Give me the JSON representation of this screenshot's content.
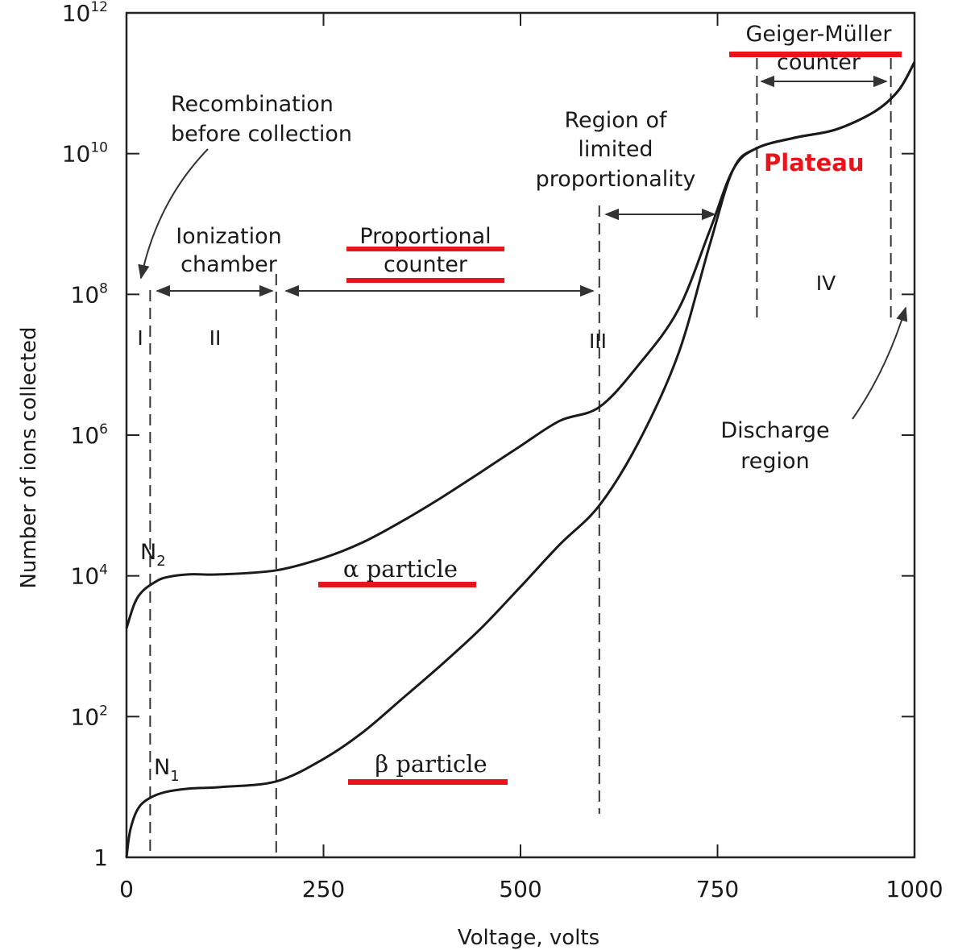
{
  "chart_data": {
    "type": "line",
    "title": "",
    "xlabel": "Voltage, volts",
    "ylabel": "Number of ions collected",
    "xlim": [
      0,
      1000
    ],
    "ylim_log10": [
      0,
      12
    ],
    "y_scale": "log",
    "grid": false,
    "x_ticks": [
      "0",
      "250",
      "500",
      "750",
      "1000"
    ],
    "y_ticks": [
      {
        "base": "1",
        "exp": ""
      },
      {
        "base": "10",
        "exp": "2"
      },
      {
        "base": "10",
        "exp": "4"
      },
      {
        "base": "10",
        "exp": "6"
      },
      {
        "base": "10",
        "exp": "8"
      },
      {
        "base": "10",
        "exp": "10"
      },
      {
        "base": "10",
        "exp": "12"
      }
    ],
    "series": [
      {
        "name": "α particle",
        "x": [
          0,
          10,
          20,
          35,
          50,
          80,
          120,
          190,
          250,
          300,
          350,
          400,
          450,
          500,
          550,
          600,
          650,
          700,
          740,
          770,
          800,
          850,
          900,
          950,
          980,
          1000
        ],
        "y": [
          1800.0,
          4000.0,
          6000.0,
          8000.0,
          9500.0,
          10500.0,
          10500.0,
          12000.0,
          18000.0,
          30000.0,
          60000.0,
          130000.0,
          300000.0,
          700000.0,
          1600000.0,
          2500000.0,
          10000000.0,
          60000000.0,
          800000000.0,
          6000000000.0,
          12000000000.0,
          17000000000.0,
          22000000000.0,
          40000000000.0,
          80000000000.0,
          200000000000.0
        ]
      },
      {
        "name": "β particle",
        "x": [
          0,
          5,
          15,
          30,
          50,
          80,
          120,
          190,
          250,
          300,
          350,
          400,
          450,
          500,
          550,
          600,
          650,
          700,
          740,
          770,
          800,
          850,
          900,
          950,
          980,
          1000
        ],
        "y": [
          1,
          2.5,
          5,
          7,
          8.5,
          9.5,
          10,
          12,
          25,
          60,
          180,
          550,
          1800.0,
          7000.0,
          28000.0,
          100000.0,
          800000.0,
          14000000.0,
          500000000.0,
          6000000000.0,
          12000000000.0,
          17000000000.0,
          22000000000.0,
          40000000000.0,
          80000000000.0,
          200000000000.0
        ]
      }
    ],
    "boundaries_volts": [
      30,
      190,
      600,
      800,
      970
    ],
    "annotations": {
      "recombination": [
        "Recombination",
        "before collection"
      ],
      "ionization": [
        "Ionization",
        "chamber"
      ],
      "proportional": [
        "Proportional",
        "counter"
      ],
      "limited": [
        "Region of",
        "limited",
        "proportionality"
      ],
      "geiger": [
        "Geiger-Müller",
        "counter"
      ],
      "plateau": "Plateau",
      "discharge": [
        "Discharge",
        "region"
      ],
      "regions": [
        "I",
        "II",
        "III",
        "IV"
      ],
      "n2": {
        "base": "N",
        "sub": "2"
      },
      "n1": {
        "base": "N",
        "sub": "1"
      }
    },
    "highlight_color": "#e8141b",
    "plateau_color": "#e8141b"
  }
}
